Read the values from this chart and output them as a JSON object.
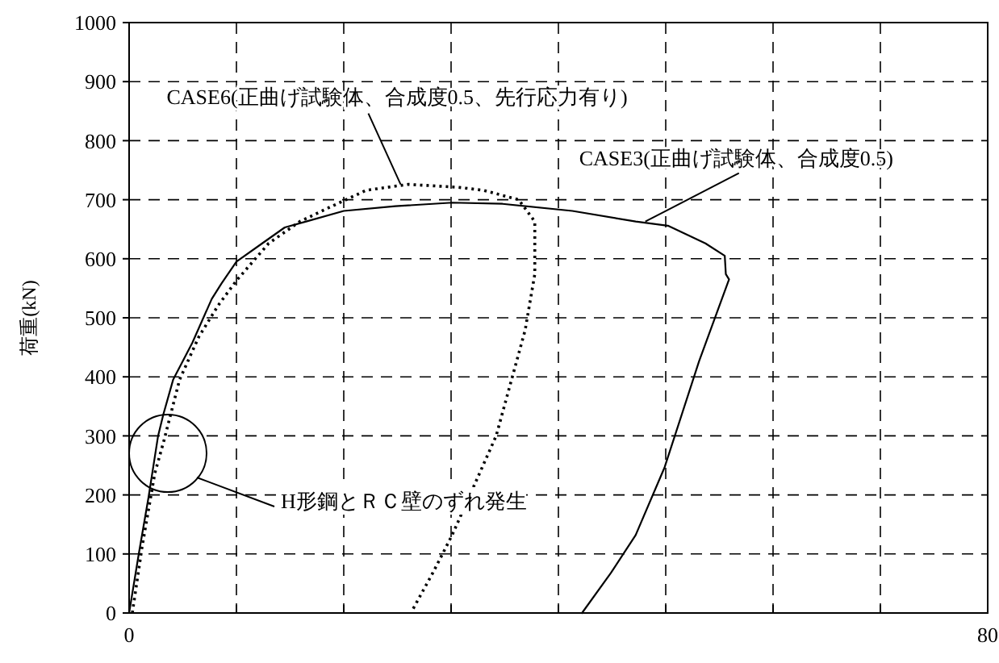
{
  "chart_data": {
    "type": "line",
    "ylabel": "荷重(kN)",
    "xlim": [
      0,
      80
    ],
    "ylim": [
      0,
      1000
    ],
    "xticks": [
      0,
      {
        "value": 10,
        "label": null
      },
      {
        "value": 20,
        "label": null
      },
      {
        "value": 30,
        "label": null
      },
      {
        "value": 40,
        "label": null
      },
      {
        "value": 50,
        "label": null
      },
      {
        "value": 60,
        "label": null
      },
      {
        "value": 70,
        "label": null
      },
      80
    ],
    "yticks": [
      0,
      100,
      200,
      300,
      400,
      500,
      600,
      700,
      800,
      900,
      1000
    ],
    "grid": true,
    "marker": "none",
    "series": [
      {
        "color": "#000000",
        "line_style": "solid",
        "x": [
          0,
          0.9,
          1.8,
          2.7,
          3.2,
          4.1,
          5.9,
          7.7,
          8.6,
          10,
          12.4,
          14.5,
          16.5,
          20,
          24.8,
          30.1,
          34.8,
          41.3,
          47.2,
          50.2,
          53.7,
          55.5,
          55.6,
          55.9,
          53.1,
          49.9,
          47.2,
          44.9,
          42.2
        ],
        "values": [
          0,
          100,
          195,
          300,
          337,
          395,
          458,
          532,
          558,
          595,
          626,
          653,
          663,
          681,
          689,
          695,
          693,
          681,
          663,
          656,
          626,
          605,
          574,
          565,
          426,
          247,
          132,
          68,
          0
        ]
      },
      {
        "color": "#000000",
        "line_style": "dotted",
        "x": [
          0.3,
          1.2,
          2.4,
          3.2,
          4.7,
          6.5,
          8.3,
          10,
          13,
          15.9,
          18.9,
          22.1,
          26,
          30.7,
          33,
          36.3,
          37.8,
          37.8,
          36.9,
          34.2,
          30.1,
          28.3,
          26.4
        ],
        "values": [
          0,
          111,
          237,
          289,
          395,
          468,
          521,
          563,
          626,
          663,
          689,
          716,
          726,
          721,
          716,
          700,
          663,
          574,
          479,
          300,
          132,
          68,
          5
        ]
      }
    ],
    "annotations": [
      {
        "text": "CASE6(正曲げ試験体、合成度0.5、先行応力有り)",
        "x": 25.3,
        "y": 726
      },
      {
        "text": "CASE3(正曲げ試験体、合成度0.5)",
        "x": 48.1,
        "y": 663
      },
      "H形鋼とＲＣ壁のずれ発生"
    ]
  }
}
